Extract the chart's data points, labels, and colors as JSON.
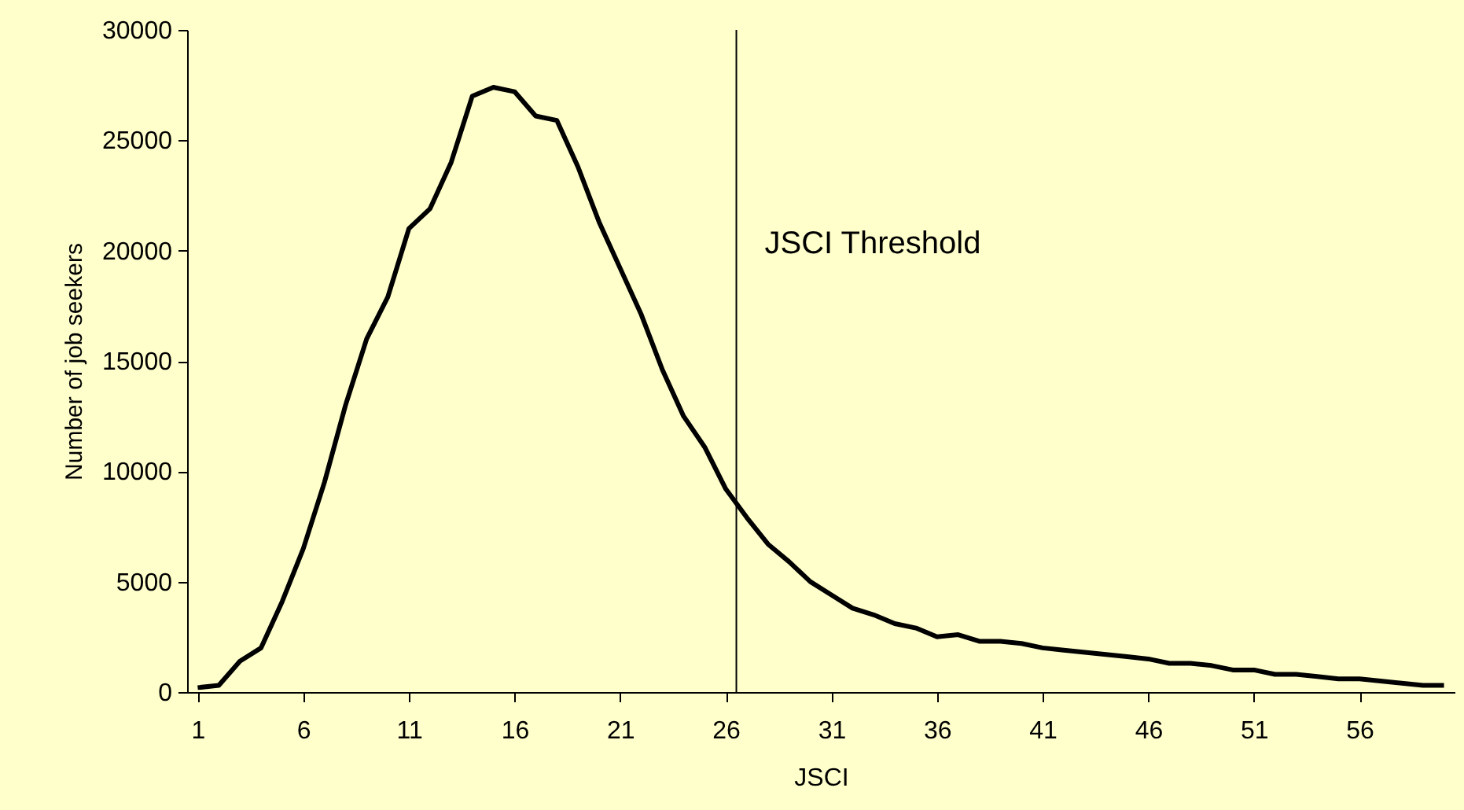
{
  "chart_data": {
    "type": "line",
    "xlabel": "JSCI",
    "ylabel": "Number of job seekers",
    "x": [
      1,
      2,
      3,
      4,
      5,
      6,
      7,
      8,
      9,
      10,
      11,
      12,
      13,
      14,
      15,
      16,
      17,
      18,
      19,
      20,
      21,
      22,
      23,
      24,
      25,
      26,
      27,
      28,
      29,
      30,
      31,
      32,
      33,
      34,
      35,
      36,
      37,
      38,
      39,
      40,
      41,
      42,
      43,
      44,
      45,
      46,
      47,
      48,
      49,
      50,
      51,
      52,
      53,
      54,
      55,
      56,
      57,
      58,
      59,
      60
    ],
    "series": [
      {
        "color": "#000000",
        "values": [
          200,
          300,
          1400,
          2000,
          4100,
          6500,
          9500,
          13000,
          16000,
          17900,
          21000,
          21900,
          24000,
          27000,
          27400,
          27200,
          26100,
          25900,
          23800,
          21300,
          19200,
          17100,
          14600,
          12500,
          11100,
          9200,
          7900,
          6700,
          5900,
          5000,
          4400,
          3800,
          3500,
          3100,
          2900,
          2500,
          2600,
          2300,
          2300,
          2200,
          2000,
          1900,
          1800,
          1700,
          1600,
          1500,
          1300,
          1300,
          1200,
          1000,
          1000,
          800,
          800,
          700,
          600,
          600,
          500,
          400,
          300,
          300
        ]
      }
    ],
    "xlim": [
      0.5,
      60.5
    ],
    "xticks": [
      1,
      6,
      11,
      16,
      21,
      26,
      31,
      36,
      41,
      46,
      51,
      56
    ],
    "ylim": [
      0,
      30000
    ],
    "yticks": [
      0,
      5000,
      10000,
      15000,
      20000,
      25000,
      30000
    ],
    "ref_lines": [
      {
        "axis": "x",
        "value": 26.5,
        "label": "JSCI Threshold",
        "color": "#000000"
      }
    ],
    "grid": false,
    "marker": "none",
    "line_style": "solid"
  }
}
